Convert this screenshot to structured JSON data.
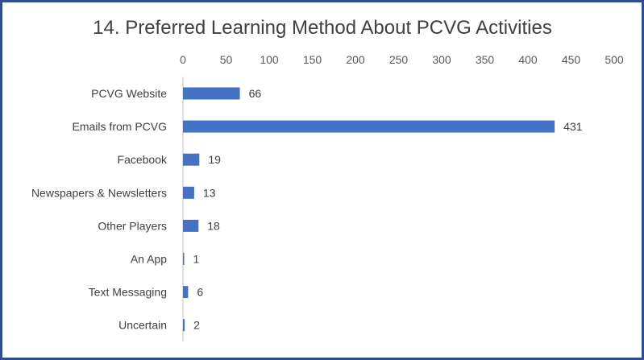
{
  "chart_data": {
    "type": "bar",
    "orientation": "horizontal",
    "title": "14. Preferred Learning Method About PCVG Activities",
    "xlabel": "",
    "ylabel": "",
    "xlim": [
      0,
      500
    ],
    "x_ticks": [
      0,
      50,
      100,
      150,
      200,
      250,
      300,
      350,
      400,
      450,
      500
    ],
    "x_axis_position": "top",
    "grid": false,
    "legend": "none",
    "bar_color": "#4472c4",
    "categories": [
      "PCVG Website",
      "Emails from PCVG",
      "Facebook",
      "Newspapers & Newsletters",
      "Other Players",
      "An App",
      "Text Messaging",
      "Uncertain"
    ],
    "values": [
      66,
      431,
      19,
      13,
      18,
      1,
      6,
      2
    ]
  }
}
